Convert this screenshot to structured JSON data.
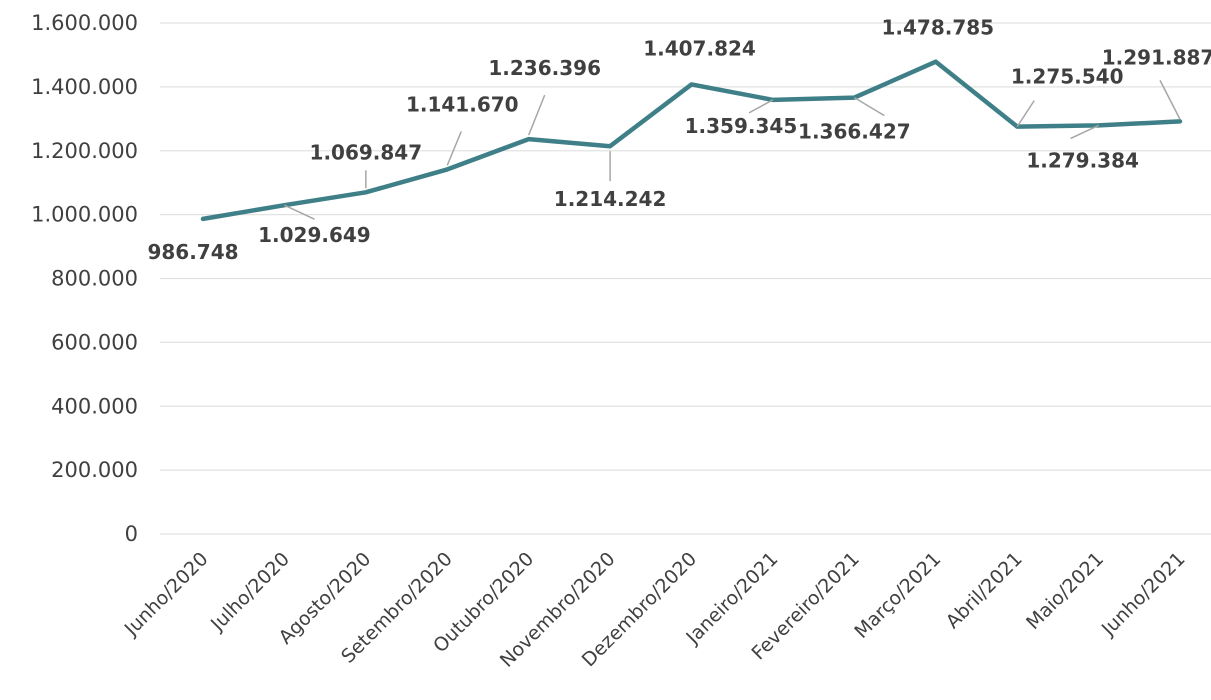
{
  "chart_data": {
    "type": "line",
    "title": "",
    "xlabel": "",
    "ylabel": "",
    "ylim": [
      0,
      1600000
    ],
    "ytick_step": 200000,
    "grid": true,
    "legend": "none",
    "categories": [
      "Junho/2020",
      "Julho/2020",
      "Agosto/2020",
      "Setembro/2020",
      "Outubro/2020",
      "Novembro/2020",
      "Dezembro/2020",
      "Janeiro/2021",
      "Fevereiro/2021",
      "Março/2021",
      "Abril/2021",
      "Maio/2021",
      "Junho/2021"
    ],
    "series": [
      {
        "color": "#3f8088",
        "values": [
          986748,
          1029649,
          1069847,
          1141670,
          1236396,
          1214242,
          1407824,
          1359345,
          1366427,
          1478785,
          1275540,
          1279384,
          1291887
        ]
      }
    ],
    "y_tick_labels": [
      "0",
      "200.000",
      "400.000",
      "600.000",
      "800.000",
      "1.000.000",
      "1.200.000",
      "1.400.000",
      "1.600.000"
    ],
    "data_labels": [
      "986.748",
      "1.029.649",
      "1.069.847",
      "1.141.670",
      "1.236.396",
      "1.214.242",
      "1.407.824",
      "1.359.345",
      "1.366.427",
      "1.478.785",
      "1.275.540",
      "1.279.384",
      "1.291.887"
    ]
  }
}
